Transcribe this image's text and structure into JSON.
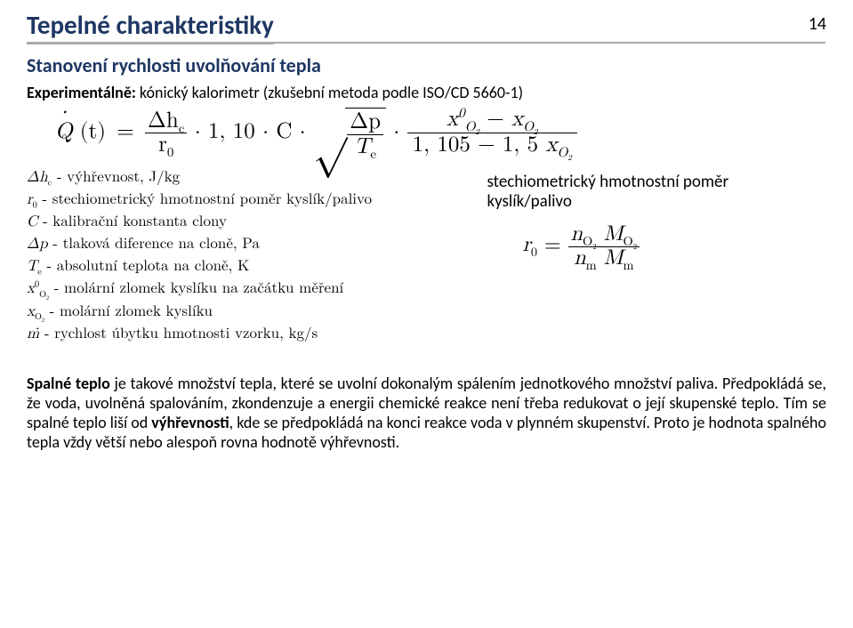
{
  "page": {
    "number": "14",
    "title": "Tepelné charakteristiky",
    "subtitle": "Stanovení rychlosti uvolňování tepla",
    "method_label": "Experimentálně:",
    "method_text": " kónický kalorimetr (zkušební metoda  podle ISO/CD 5660-1)"
  },
  "main_equation": {
    "lhs_sym": "Q̇",
    "lhs_arg": "(t)",
    "eq": "=",
    "frac1_num": "Δh",
    "frac1_num_sub": "c",
    "frac1_den": "r",
    "frac1_den_sub": "0",
    "dot1": " · ",
    "const1": "1, 10 · C · ",
    "frac2_num": "Δp",
    "frac2_den": "T",
    "frac2_den_sub": "e",
    "dot2": " · ",
    "frac3_num_a": "x",
    "frac3_num_a_sup": "0",
    "frac3_num_a_sub": "O",
    "frac3_num_a_sub2": "2",
    "frac3_num_minus": " − ",
    "frac3_num_b": "x",
    "frac3_num_b_sub": "O",
    "frac3_num_b_sub2": "2",
    "frac3_den_a": "1, 105 − 1, 5 ",
    "frac3_den_b": "x",
    "frac3_den_b_sub": "O",
    "frac3_den_b_sub2": "2"
  },
  "definitions": [
    {
      "sym": "Δh",
      "sub": "c",
      "text": " - výhřevnost, J/kg"
    },
    {
      "sym": "r",
      "sub": "0",
      "text": " - stechiometrický hmotnostní poměr kyslík/palivo"
    },
    {
      "sym": "C",
      "sub": "",
      "text": " - kalibrační konstanta clony"
    },
    {
      "sym": "Δp",
      "sub": "",
      "text": " - tlaková diference na cloně, Pa"
    },
    {
      "sym": "T",
      "sub": "e",
      "text": " - absolutní teplota na cloně, K"
    },
    {
      "sym": "x",
      "sub": "O",
      "sub2": "2",
      "sup": "0",
      "text": " - molární zlomek kyslíku na začátku měření"
    },
    {
      "sym": "x",
      "sub": "O",
      "sub2": "2",
      "text": " - molární zlomek kyslíku"
    },
    {
      "sym": "ṁ",
      "sub": "",
      "text": " - rychlost úbytku hmotnosti vzorku, kg/s"
    }
  ],
  "right": {
    "label1": "stechiometrický hmotnostní poměr",
    "label2": "kyslík/palivo",
    "r0_lhs": "r",
    "r0_lhs_sub": "0",
    "r0_eq": " = ",
    "r0_num_a": "n",
    "r0_num_a_sub": "O",
    "r0_num_a_sub2": "2",
    "r0_num_b": "M",
    "r0_num_b_sub": "O",
    "r0_num_b_sub2": "2",
    "r0_den_a": "n",
    "r0_den_a_sub": "m",
    "r0_den_b": "M",
    "r0_den_b_sub": "m"
  },
  "footnote": {
    "p1a": "Spalné teplo",
    "p1b": " je takové množství tepla, které se uvolní dokonalým spálením jednotkového množství paliva. Předpokládá se, že voda, uvolněná spalováním, zkondenzuje a energii chemické reakce není třeba redukovat o její skupenské teplo. Tím se spalné teplo liší od ",
    "p1c": "výhřevnosti",
    "p1d": ", kde se předpokládá na konci reakce voda v plynném skupenství. Proto je hodnota spalného tepla vždy větší nebo alespoň rovna hodnotě výhřevnosti."
  },
  "colors": {
    "heading": "#1f3763",
    "rule": "#aaaaaa",
    "text": "#000000",
    "bg": "#ffffff"
  }
}
